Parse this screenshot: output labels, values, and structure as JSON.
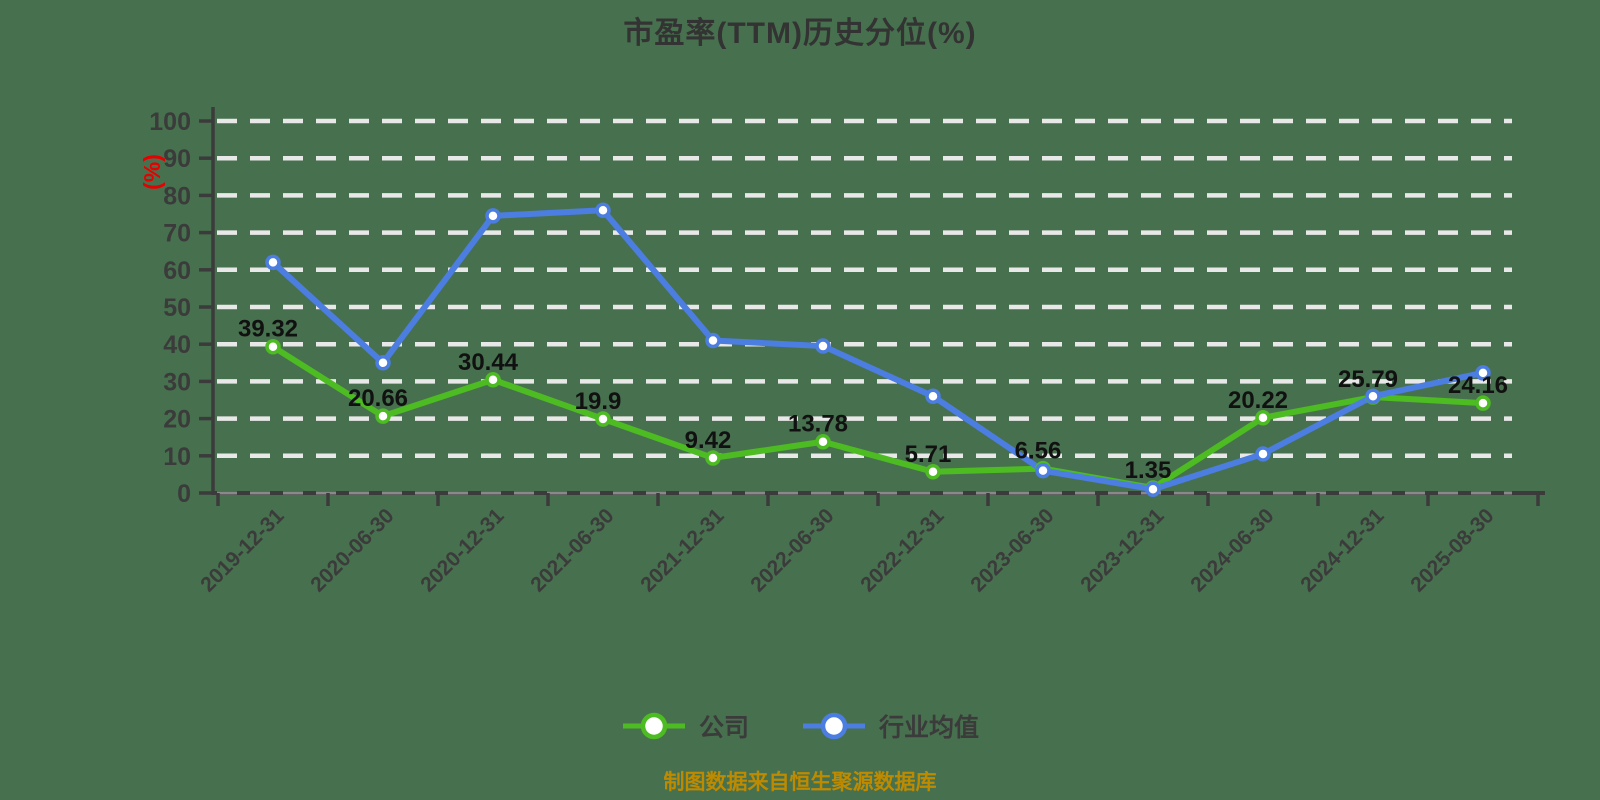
{
  "title": "市盈率(TTM)历史分位(%)",
  "y_axis_unit": "(%)",
  "footer": "制图数据来自恒生聚源数据库",
  "colors": {
    "background": "#47714E",
    "company": "#4DBB22",
    "industry": "#4C7DE0",
    "grid": "#E8E8E8",
    "axis": "#3B3B3B",
    "label": "#111111",
    "title": "#333333",
    "unit": "#E60000",
    "footer": "#BE8A00"
  },
  "legend": {
    "position": "bottom-center",
    "items": [
      {
        "label": "公司",
        "color": "#4DBB22"
      },
      {
        "label": "行业均值",
        "color": "#4C7DE0"
      }
    ]
  },
  "chart_data": {
    "type": "line",
    "title": "市盈率(TTM)历史分位(%)",
    "xlabel": "",
    "ylabel": "(%)",
    "ylim": [
      0,
      100
    ],
    "y_ticks": [
      0,
      10,
      20,
      30,
      40,
      50,
      60,
      70,
      80,
      90,
      100
    ],
    "grid": "dashed-horizontal",
    "x_label_rotation": -45,
    "legend_position": "bottom",
    "categories": [
      "2019-12-31",
      "2020-06-30",
      "2020-12-31",
      "2021-06-30",
      "2021-12-31",
      "2022-06-30",
      "2022-12-31",
      "2023-06-30",
      "2023-12-31",
      "2024-06-30",
      "2024-12-31",
      "2025-08-30"
    ],
    "series": [
      {
        "name": "公司",
        "color": "#4DBB22",
        "values": [
          39.32,
          20.66,
          30.44,
          19.9,
          9.42,
          13.78,
          5.71,
          6.56,
          1.35,
          20.22,
          25.79,
          24.16
        ],
        "point_labels": [
          "39.32",
          "20.66",
          "30.44",
          "19.9",
          "9.42",
          "13.78",
          "5.71",
          "6.56",
          "1.35",
          "20.22",
          "25.79",
          "24.16"
        ]
      },
      {
        "name": "行业均值",
        "color": "#4C7DE0",
        "values": [
          62,
          35,
          74.5,
          76,
          41,
          39.5,
          26,
          6,
          1,
          10.5,
          26,
          32.3
        ],
        "point_labels": []
      }
    ]
  }
}
